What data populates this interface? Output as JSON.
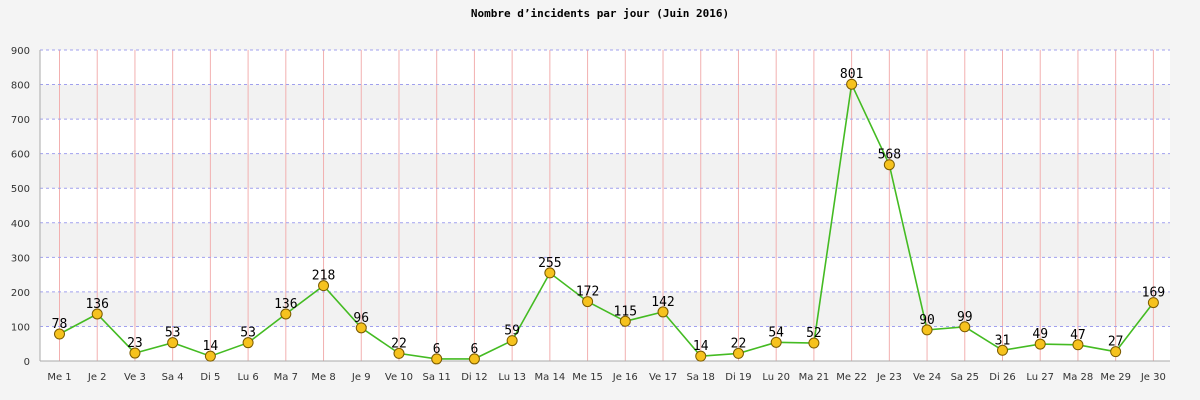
{
  "chart_data": {
    "type": "line",
    "title": "Nombre d’incidents par jour (Juin 2016)",
    "xlabel": "",
    "ylabel": "",
    "ylim": [
      0,
      900
    ],
    "yticks": [
      0,
      100,
      200,
      300,
      400,
      500,
      600,
      700,
      800,
      900
    ],
    "grid": true,
    "categories": [
      "Me 1",
      "Je 2",
      "Ve 3",
      "Sa 4",
      "Di 5",
      "Lu 6",
      "Ma 7",
      "Me 8",
      "Je 9",
      "Ve 10",
      "Sa 11",
      "Di 12",
      "Lu 13",
      "Ma 14",
      "Me 15",
      "Je 16",
      "Ve 17",
      "Sa 18",
      "Di 19",
      "Lu 20",
      "Ma 21",
      "Me 22",
      "Je 23",
      "Ve 24",
      "Sa 25",
      "Di 26",
      "Lu 27",
      "Ma 28",
      "Me 29",
      "Je 30"
    ],
    "series": [
      {
        "values": [
          78,
          136,
          23,
          53,
          14,
          53,
          136,
          218,
          96,
          22,
          6,
          6,
          59,
          255,
          172,
          115,
          142,
          14,
          22,
          54,
          52,
          801,
          568,
          90,
          99,
          31,
          49,
          47,
          27,
          169
        ]
      }
    ],
    "colors": {
      "line": "#44bb22",
      "marker_fill": "#f6c21e",
      "marker_stroke": "#7a5a00",
      "vgrid": "#f2b0b0",
      "hgrid": "#a0a0ee",
      "band": "#f2f2f2",
      "plot_bg": "#ffffff"
    }
  }
}
